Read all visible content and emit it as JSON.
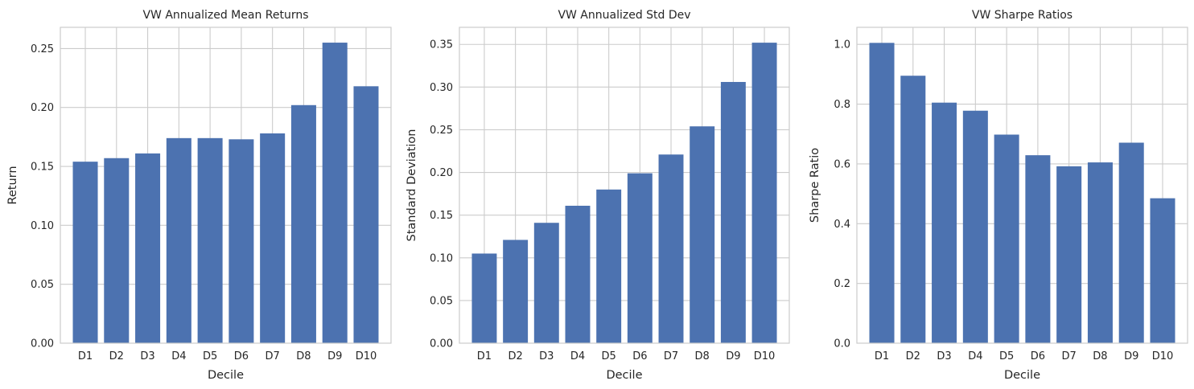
{
  "colors": {
    "bar": "#4c72b0",
    "grid": "#cccccc",
    "spine": "#cccccc",
    "text": "#262626"
  },
  "chart_data": [
    {
      "type": "bar",
      "title": "VW Annualized Mean Returns",
      "xlabel": "Decile",
      "ylabel": "Return",
      "categories": [
        "D1",
        "D2",
        "D3",
        "D4",
        "D5",
        "D6",
        "D7",
        "D8",
        "D9",
        "D10"
      ],
      "values": [
        0.154,
        0.157,
        0.161,
        0.174,
        0.174,
        0.173,
        0.178,
        0.202,
        0.255,
        0.218
      ],
      "ylim": [
        0,
        0.268
      ],
      "yticks": [
        0.0,
        0.05,
        0.1,
        0.15,
        0.2,
        0.25
      ],
      "ytick_labels": [
        "0.00",
        "0.05",
        "0.10",
        "0.15",
        "0.20",
        "0.25"
      ],
      "grid": true
    },
    {
      "type": "bar",
      "title": "VW Annualized Std Dev",
      "xlabel": "Decile",
      "ylabel": "Standard Deviation",
      "categories": [
        "D1",
        "D2",
        "D3",
        "D4",
        "D5",
        "D6",
        "D7",
        "D8",
        "D9",
        "D10"
      ],
      "values": [
        0.105,
        0.121,
        0.141,
        0.161,
        0.18,
        0.199,
        0.221,
        0.254,
        0.306,
        0.352
      ],
      "ylim": [
        0,
        0.37
      ],
      "yticks": [
        0.0,
        0.05,
        0.1,
        0.15,
        0.2,
        0.25,
        0.3,
        0.35
      ],
      "ytick_labels": [
        "0.00",
        "0.05",
        "0.10",
        "0.15",
        "0.20",
        "0.25",
        "0.30",
        "0.35"
      ],
      "grid": true
    },
    {
      "type": "bar",
      "title": "VW Sharpe Ratios",
      "xlabel": "Decile",
      "ylabel": "Sharpe Ratio",
      "categories": [
        "D1",
        "D2",
        "D3",
        "D4",
        "D5",
        "D6",
        "D7",
        "D8",
        "D9",
        "D10"
      ],
      "values": [
        1.005,
        0.895,
        0.805,
        0.778,
        0.698,
        0.629,
        0.592,
        0.605,
        0.671,
        0.485
      ],
      "ylim": [
        0,
        1.057
      ],
      "yticks": [
        0.0,
        0.2,
        0.4,
        0.6,
        0.8,
        1.0
      ],
      "ytick_labels": [
        "0.0",
        "0.2",
        "0.4",
        "0.6",
        "0.8",
        "1.0"
      ],
      "grid": true
    }
  ]
}
